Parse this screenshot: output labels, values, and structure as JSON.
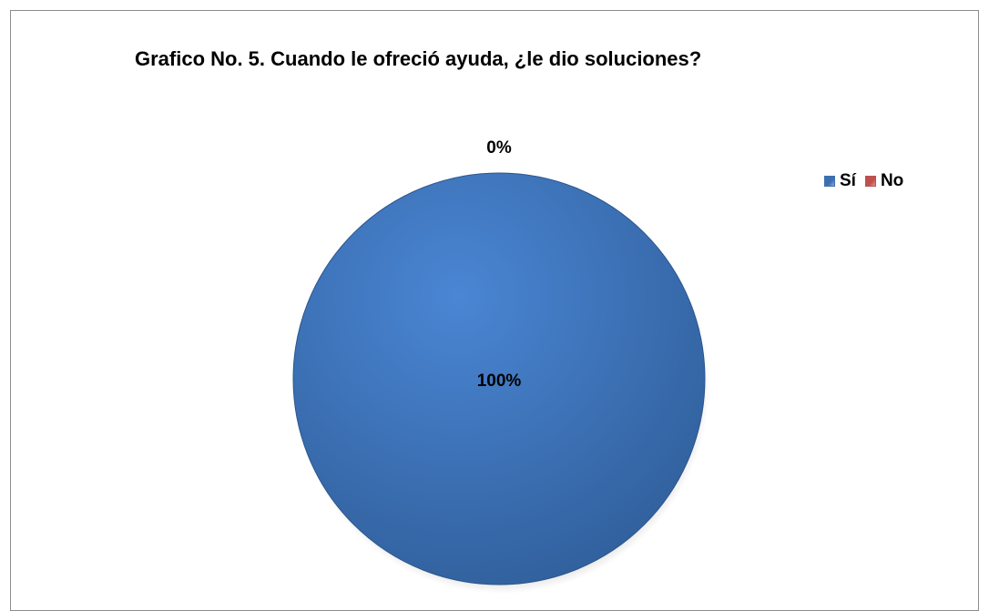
{
  "chart_data": {
    "type": "pie",
    "title": "Grafico No. 5. Cuando le ofreció ayuda, ¿le dio soluciones?",
    "categories": [
      "Sí",
      "No"
    ],
    "values": [
      100,
      0
    ],
    "data_labels": [
      "100%",
      "0%"
    ],
    "colors": [
      "#3d6fb0",
      "#c0504d"
    ],
    "legend_position": "top-right"
  }
}
